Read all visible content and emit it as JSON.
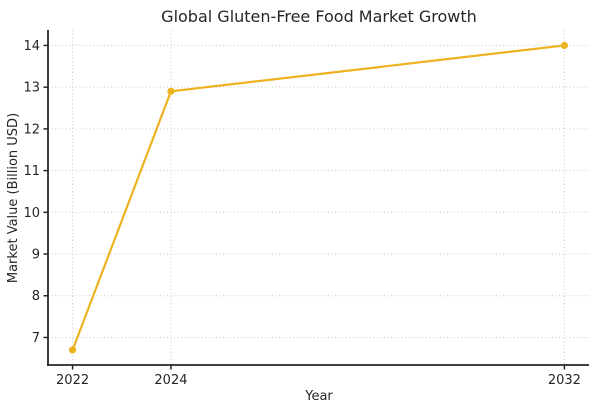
{
  "chart_data": {
    "type": "line",
    "title": "Global Gluten-Free Food Market Growth",
    "xlabel": "Year",
    "ylabel": "Market Value (Billion USD)",
    "x": [
      2022,
      2024,
      2032
    ],
    "series": [
      {
        "name": "Market Value (Billion USD)",
        "values": [
          6.7,
          12.9,
          14.0
        ]
      }
    ],
    "x_tick_values": [
      2022,
      2024,
      2032
    ],
    "x_tick_labels": [
      "2022",
      "2024",
      "2032"
    ],
    "y_tick_values": [
      7,
      8,
      9,
      10,
      11,
      12,
      13,
      14
    ],
    "y_tick_labels": [
      "7",
      "8",
      "9",
      "10",
      "11",
      "12",
      "13",
      "14"
    ],
    "xlim": [
      2021.5,
      2032.5
    ],
    "ylim": [
      6.34,
      14.37
    ],
    "grid": true,
    "grid_style": "dotted",
    "legend_position": "none",
    "marker": "circle"
  },
  "colors": {
    "line": "#EDB21F",
    "marker": "#EDB21F",
    "grid": "#c9c9c9",
    "spine": "#262626",
    "text": "#262626",
    "background": "#ffffff"
  }
}
